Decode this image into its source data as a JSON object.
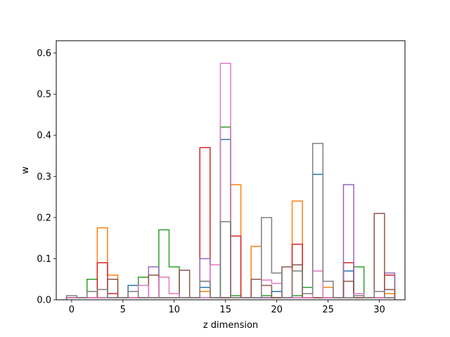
{
  "chart_data": {
    "type": "histogram-step",
    "xlabel": "z dimension",
    "ylabel": "w",
    "xlim": [
      -1.5,
      32.5
    ],
    "ylim": [
      0,
      0.63
    ],
    "bin_width": 1,
    "grid": false,
    "legend": "none",
    "xticks": [
      {
        "value": 0,
        "label": "0"
      },
      {
        "value": 5,
        "label": "5"
      },
      {
        "value": 10,
        "label": "10"
      },
      {
        "value": 15,
        "label": "15"
      },
      {
        "value": 20,
        "label": "20"
      },
      {
        "value": 25,
        "label": "25"
      },
      {
        "value": 30,
        "label": "30"
      }
    ],
    "yticks": [
      {
        "value": 0.0,
        "label": "0.0"
      },
      {
        "value": 0.1,
        "label": "0.1"
      },
      {
        "value": 0.2,
        "label": "0.2"
      },
      {
        "value": 0.3,
        "label": "0.3"
      },
      {
        "value": 0.4,
        "label": "0.4"
      },
      {
        "value": 0.5,
        "label": "0.5"
      },
      {
        "value": 0.6,
        "label": "0.6"
      }
    ],
    "series": [
      {
        "color": "#1f77b4",
        "values": [
          0.005,
          0.005,
          0.005,
          0.005,
          0.005,
          0.005,
          0.035,
          0.005,
          0.005,
          0.005,
          0.005,
          0.005,
          0.005,
          0.03,
          0.005,
          0.39,
          0.005,
          0.005,
          0.005,
          0.005,
          0.02,
          0.005,
          0.005,
          0.005,
          0.305,
          0.005,
          0.005,
          0.07,
          0.005,
          0.005,
          0.005,
          0.005
        ]
      },
      {
        "color": "#ff7f0e",
        "values": [
          0.005,
          0.005,
          0.005,
          0.175,
          0.06,
          0.005,
          0.005,
          0.005,
          0.005,
          0.005,
          0.005,
          0.005,
          0.005,
          0.02,
          0.005,
          0.005,
          0.28,
          0.005,
          0.13,
          0.005,
          0.005,
          0.005,
          0.24,
          0.005,
          0.005,
          0.03,
          0.005,
          0.005,
          0.005,
          0.005,
          0.005,
          0.015
        ]
      },
      {
        "color": "#2ca02c",
        "values": [
          0.005,
          0.005,
          0.05,
          0.005,
          0.005,
          0.005,
          0.005,
          0.055,
          0.005,
          0.17,
          0.08,
          0.005,
          0.005,
          0.045,
          0.005,
          0.42,
          0.01,
          0.005,
          0.005,
          0.01,
          0.005,
          0.005,
          0.01,
          0.03,
          0.005,
          0.005,
          0.005,
          0.005,
          0.08,
          0.005,
          0.005,
          0.005
        ]
      },
      {
        "color": "#d62728",
        "values": [
          0.005,
          0.005,
          0.005,
          0.09,
          0.015,
          0.005,
          0.005,
          0.005,
          0.005,
          0.005,
          0.005,
          0.005,
          0.005,
          0.37,
          0.005,
          0.005,
          0.155,
          0.005,
          0.005,
          0.005,
          0.005,
          0.005,
          0.135,
          0.005,
          0.005,
          0.005,
          0.005,
          0.09,
          0.005,
          0.005,
          0.005,
          0.06
        ]
      },
      {
        "color": "#9467bd",
        "values": [
          0.005,
          0.005,
          0.005,
          0.005,
          0.005,
          0.005,
          0.005,
          0.005,
          0.08,
          0.005,
          0.005,
          0.005,
          0.005,
          0.1,
          0.005,
          0.005,
          0.005,
          0.005,
          0.005,
          0.005,
          0.005,
          0.005,
          0.005,
          0.005,
          0.005,
          0.005,
          0.005,
          0.28,
          0.005,
          0.005,
          0.005,
          0.065
        ]
      },
      {
        "color": "#8c564b",
        "values": [
          0.005,
          0.005,
          0.02,
          0.005,
          0.05,
          0.005,
          0.005,
          0.005,
          0.06,
          0.005,
          0.005,
          0.072,
          0.005,
          0.005,
          0.005,
          0.005,
          0.005,
          0.005,
          0.05,
          0.035,
          0.005,
          0.08,
          0.085,
          0.005,
          0.005,
          0.005,
          0.005,
          0.045,
          0.005,
          0.005,
          0.21,
          0.025
        ]
      },
      {
        "color": "#e377c2",
        "values": [
          0.005,
          0.005,
          0.005,
          0.005,
          0.005,
          0.005,
          0.005,
          0.035,
          0.005,
          0.055,
          0.015,
          0.005,
          0.005,
          0.005,
          0.085,
          0.575,
          0.005,
          0.005,
          0.005,
          0.048,
          0.04,
          0.005,
          0.005,
          0.005,
          0.07,
          0.005,
          0.005,
          0.005,
          0.015,
          0.005,
          0.005,
          0.005
        ]
      },
      {
        "color": "#7f7f7f",
        "values": [
          0.01,
          0.005,
          0.02,
          0.025,
          0.005,
          0.005,
          0.02,
          0.005,
          0.005,
          0.005,
          0.005,
          0.005,
          0.005,
          0.045,
          0.005,
          0.19,
          0.005,
          0.005,
          0.005,
          0.2,
          0.065,
          0.005,
          0.07,
          0.015,
          0.38,
          0.045,
          0.005,
          0.005,
          0.01,
          0.005,
          0.02,
          0.005
        ]
      }
    ]
  }
}
